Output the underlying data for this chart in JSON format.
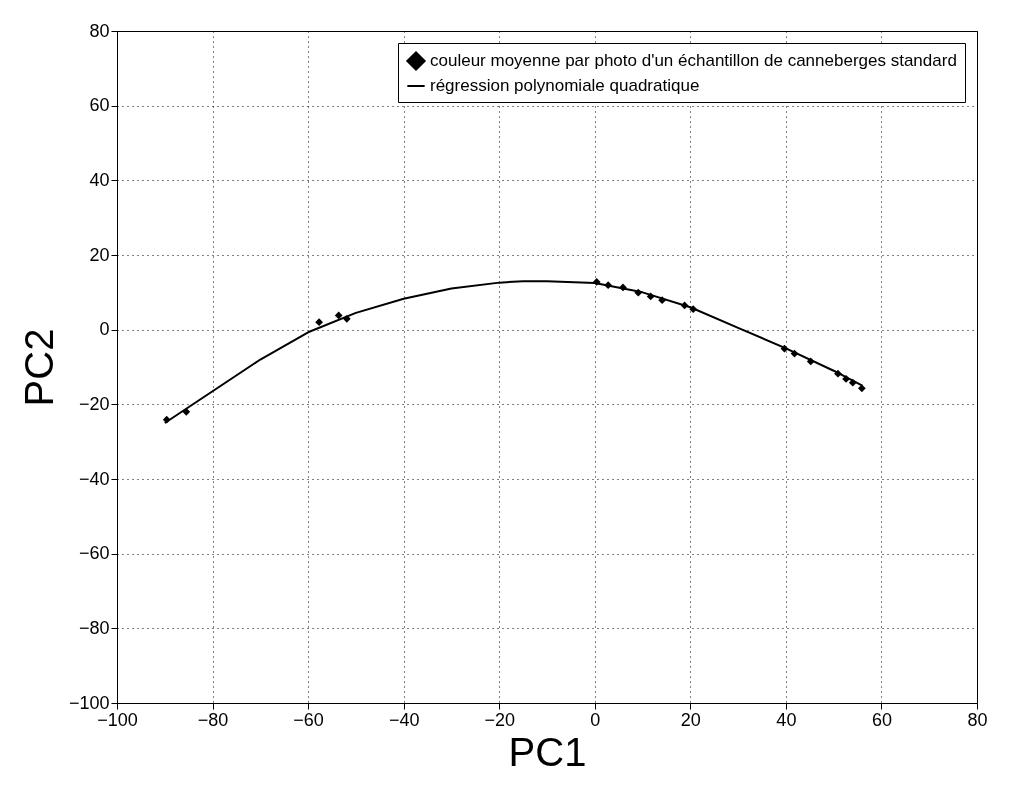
{
  "chart_data": {
    "type": "scatter",
    "xlabel": "PC1",
    "ylabel": "PC2",
    "xlim": [
      -100,
      80
    ],
    "ylim": [
      -100,
      80
    ],
    "xticks": [
      -100,
      -80,
      -60,
      -40,
      -20,
      0,
      20,
      40,
      60,
      80
    ],
    "yticks": [
      -100,
      -80,
      -60,
      -40,
      -20,
      0,
      20,
      40,
      60,
      80
    ],
    "grid": true,
    "legend": "top right",
    "series": [
      {
        "name": "couleur moyenne par photo d'un échantillon de canneberges standard",
        "marker": "diamond",
        "color": "#000000",
        "x": [
          -89.6,
          -85.5,
          -57.7,
          -53.6,
          -51.9,
          0.4,
          2.8,
          5.9,
          9.1,
          11.7,
          14.1,
          18.8,
          20.6,
          39.7,
          41.8,
          45.2,
          50.9,
          52.6,
          54.0,
          55.9
        ],
        "values": [
          -24.1,
          -22,
          2.0,
          3.8,
          2.9,
          12.8,
          11.9,
          11.3,
          9.9,
          8.9,
          7.9,
          6.5,
          5.5,
          -5.1,
          -6.4,
          -8.5,
          -11.8,
          -13.2,
          -14.2,
          -15.7
        ]
      },
      {
        "name": "régression polynomiale quadratique",
        "type": "line",
        "color": "#000000",
        "x": [
          -90,
          -80,
          -70,
          -60,
          -50,
          -40,
          -30,
          -20,
          -15,
          -10,
          0,
          10,
          20,
          30,
          40,
          50,
          56
        ],
        "values": [
          -25,
          -16.5,
          -8,
          -0.7,
          4.5,
          8.3,
          11,
          12.6,
          13,
          13,
          12.5,
          10,
          6,
          0.5,
          -5,
          -11,
          -15
        ]
      }
    ]
  }
}
